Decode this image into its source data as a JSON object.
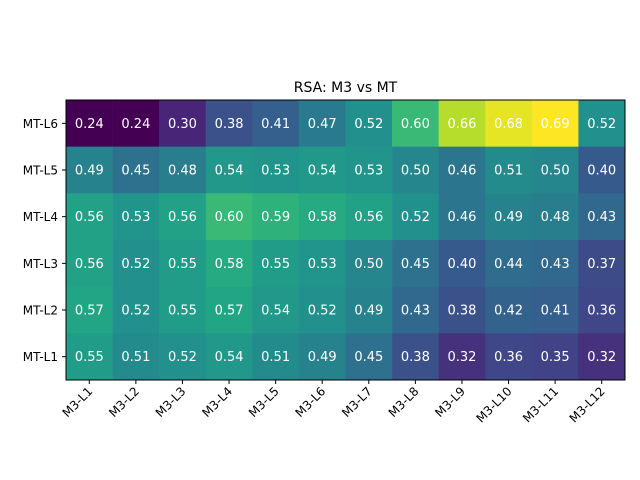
{
  "chart_data": {
    "type": "heatmap",
    "title": "RSA: M3 vs MT",
    "x_categories": [
      "M3-L1",
      "M3-L2",
      "M3-L3",
      "M3-L4",
      "M3-L5",
      "M3-L6",
      "M3-L7",
      "M3-L8",
      "M3-L9",
      "M3-L10",
      "M3-L11",
      "M3-L12"
    ],
    "y_categories": [
      "MT-L6",
      "MT-L5",
      "MT-L4",
      "MT-L3",
      "MT-L2",
      "MT-L1"
    ],
    "values": [
      [
        0.24,
        0.24,
        0.3,
        0.38,
        0.41,
        0.47,
        0.52,
        0.6,
        0.66,
        0.68,
        0.69,
        0.52
      ],
      [
        0.49,
        0.45,
        0.48,
        0.54,
        0.53,
        0.54,
        0.53,
        0.5,
        0.46,
        0.51,
        0.5,
        0.4
      ],
      [
        0.56,
        0.53,
        0.56,
        0.6,
        0.59,
        0.58,
        0.56,
        0.52,
        0.46,
        0.49,
        0.48,
        0.43
      ],
      [
        0.56,
        0.52,
        0.55,
        0.58,
        0.55,
        0.53,
        0.5,
        0.45,
        0.4,
        0.44,
        0.43,
        0.37
      ],
      [
        0.57,
        0.52,
        0.55,
        0.57,
        0.54,
        0.52,
        0.49,
        0.43,
        0.38,
        0.42,
        0.41,
        0.36
      ],
      [
        0.55,
        0.51,
        0.52,
        0.54,
        0.51,
        0.49,
        0.45,
        0.38,
        0.32,
        0.36,
        0.35,
        0.32
      ]
    ],
    "value_format": "2 decimals",
    "colormap": "viridis",
    "color_range": [
      0.24,
      0.69
    ],
    "xlabel": "",
    "ylabel": "",
    "grid": false
  }
}
